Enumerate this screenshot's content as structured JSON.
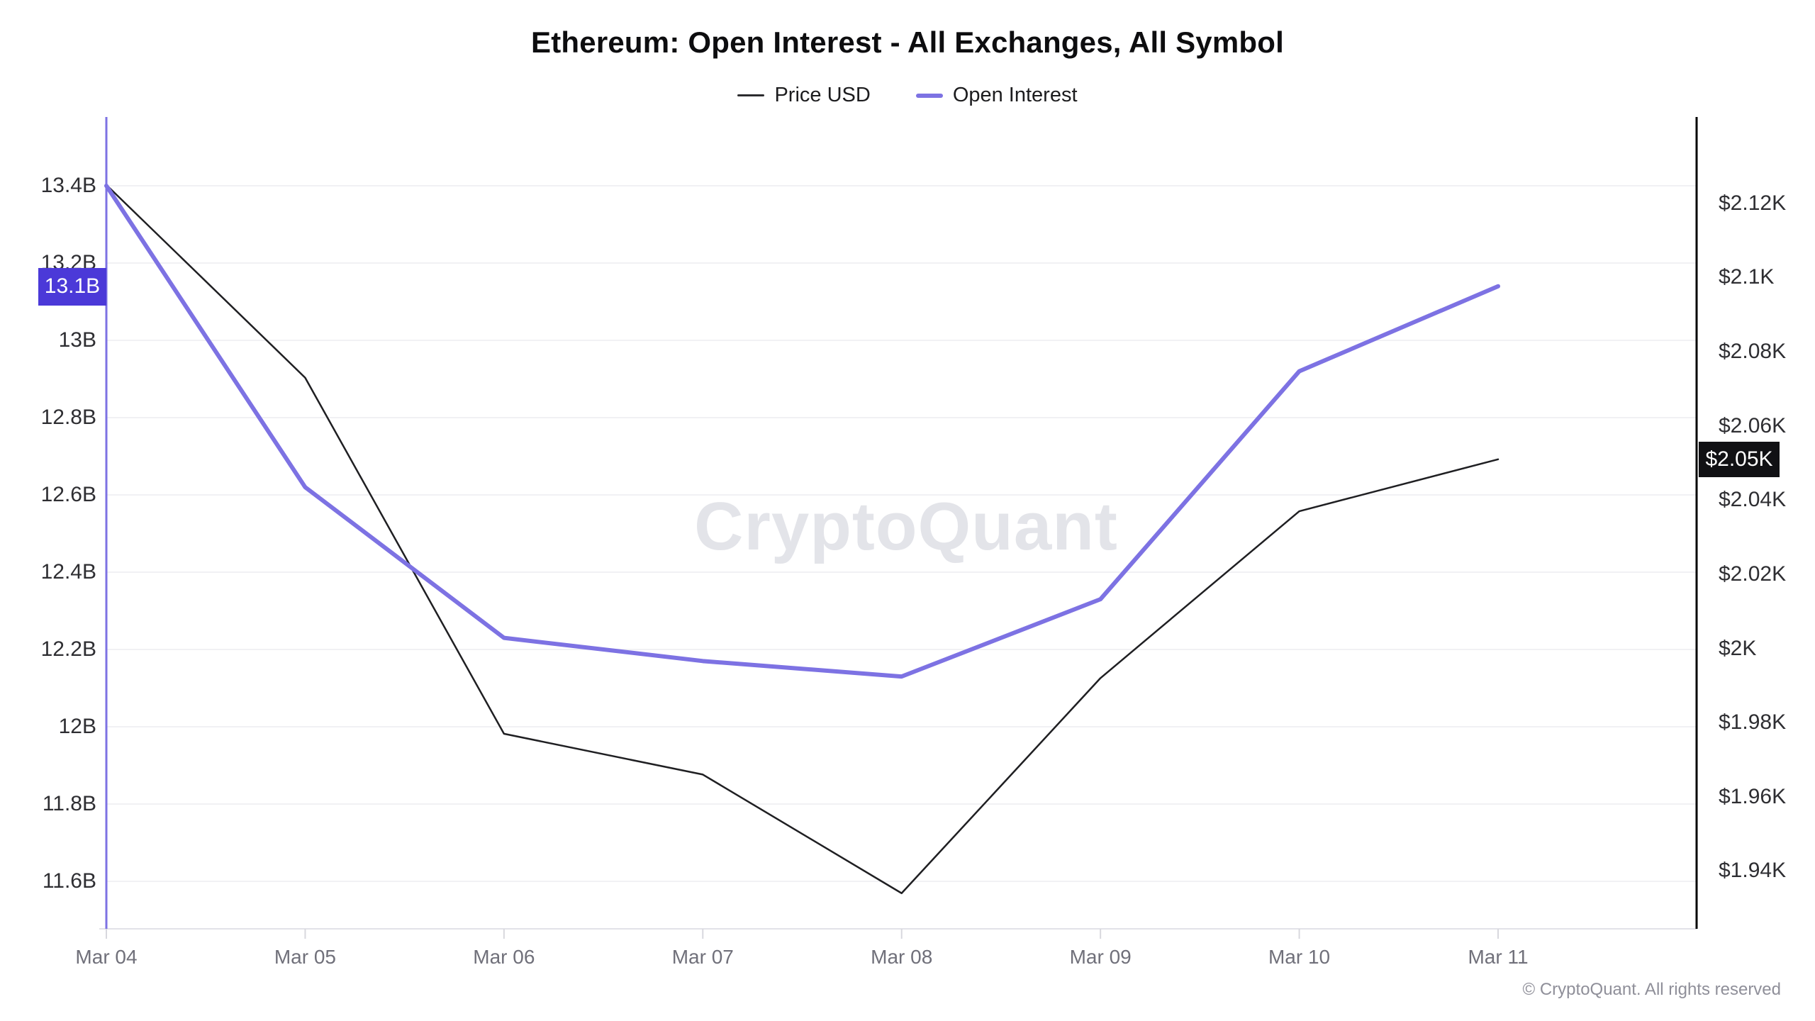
{
  "header": {
    "title": "Ethereum: Open Interest - All Exchanges, All Symbol"
  },
  "legend": {
    "items": [
      {
        "label": "Price USD",
        "color": "#2b2b2e",
        "thickness": 3
      },
      {
        "label": "Open Interest",
        "color": "#7d72e3",
        "thickness": 6
      }
    ]
  },
  "chart_data": {
    "type": "line",
    "title": "Ethereum: Open Interest - All Exchanges, All Symbol",
    "x": [
      "Mar 04",
      "Mar 05",
      "Mar 06",
      "Mar 07",
      "Mar 08",
      "Mar 09",
      "Mar 10",
      "Mar 11"
    ],
    "series": [
      {
        "name": "Price USD",
        "axis": "right",
        "color": "#1f1f22",
        "stroke_width": 2.5,
        "unit": "thousand USD",
        "values": [
          2.125,
          2.073,
          1.977,
          1.966,
          1.934,
          1.992,
          2.037,
          2.051
        ]
      },
      {
        "name": "Open Interest",
        "axis": "left",
        "color": "#7d72e3",
        "stroke_width": 6,
        "unit": "billion USD",
        "values": [
          13.4,
          12.62,
          12.23,
          12.17,
          12.13,
          12.33,
          12.92,
          13.14
        ]
      }
    ],
    "left_axis": {
      "side": "left",
      "axis_color": "#7d72e3",
      "range": [
        11.477,
        13.578
      ],
      "ticks": [
        {
          "label": "13.4B",
          "value": 13.4
        },
        {
          "label": "13.2B",
          "value": 13.2
        },
        {
          "label": "13B",
          "value": 13.0
        },
        {
          "label": "12.8B",
          "value": 12.8
        },
        {
          "label": "12.6B",
          "value": 12.6
        },
        {
          "label": "12.4B",
          "value": 12.4
        },
        {
          "label": "12.2B",
          "value": 12.2
        },
        {
          "label": "12B",
          "value": 12.0
        },
        {
          "label": "11.8B",
          "value": 11.8
        },
        {
          "label": "11.6B",
          "value": 11.6
        }
      ],
      "badge": {
        "label": "13.1B",
        "value": 13.14,
        "bg": "#4b39d8",
        "fg": "#ffffff"
      }
    },
    "right_axis": {
      "side": "right",
      "axis_color": "#000000",
      "range": [
        1.9244,
        2.1433
      ],
      "ticks": [
        {
          "label": "$2.12K",
          "value": 2.12
        },
        {
          "label": "$2.1K",
          "value": 2.1
        },
        {
          "label": "$2.08K",
          "value": 2.08
        },
        {
          "label": "$2.06K",
          "value": 2.06
        },
        {
          "label": "$2.04K",
          "value": 2.04
        },
        {
          "label": "$2.02K",
          "value": 2.02
        },
        {
          "label": "$2K",
          "value": 2.0
        },
        {
          "label": "$1.98K",
          "value": 1.98
        },
        {
          "label": "$1.96K",
          "value": 1.96
        },
        {
          "label": "$1.94K",
          "value": 1.94
        }
      ],
      "badge": {
        "label": "$2.05K",
        "value": 2.051,
        "bg": "#111114",
        "fg": "#ffffff"
      }
    },
    "grid": "horizontal",
    "grid_color": "#f1f1f4",
    "legend_position": "top"
  },
  "watermark": {
    "text": "CryptoQuant"
  },
  "footer": {
    "copyright": "© CryptoQuant. All rights reserved"
  }
}
